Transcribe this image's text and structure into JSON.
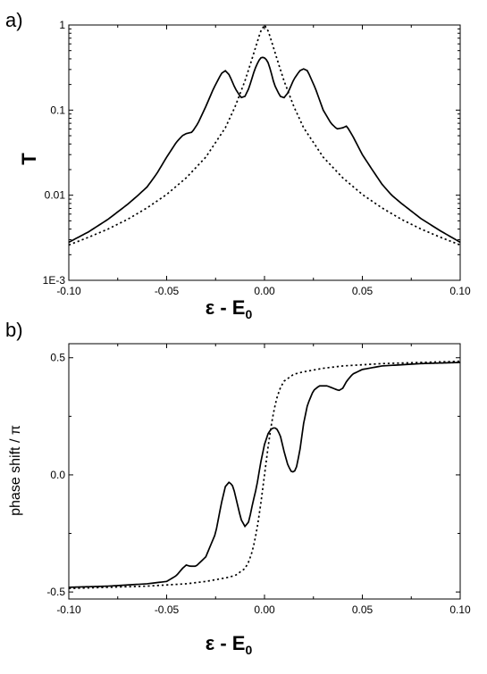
{
  "chart_data": [
    {
      "type": "line",
      "panel_label": "a)",
      "xlabel": "ε - E",
      "xlabel_sub": "0",
      "ylabel": "T",
      "xlim": [
        -0.1,
        0.1
      ],
      "ylim": [
        0.001,
        1
      ],
      "y_scale": "log",
      "grid": false,
      "x_ticks": [
        -0.1,
        -0.05,
        0.0,
        0.05,
        0.1
      ],
      "x_tick_labels": [
        "-0.10",
        "-0.05",
        "0.00",
        "0.05",
        "0.10"
      ],
      "y_ticks": [
        0.001,
        0.01,
        0.1,
        1
      ],
      "y_tick_labels": [
        "1E-3",
        "0.01",
        "0.1",
        "1"
      ],
      "series": [
        {
          "style": "solid",
          "x": [
            -0.1,
            -0.09,
            -0.08,
            -0.07,
            -0.065,
            -0.06,
            -0.055,
            -0.05,
            -0.045,
            -0.042,
            -0.04,
            -0.037,
            -0.034,
            -0.03,
            -0.026,
            -0.022,
            -0.02,
            -0.018,
            -0.015,
            -0.012,
            -0.01,
            -0.008,
            -0.005,
            -0.003,
            -0.0015,
            0.0,
            0.0015,
            0.003,
            0.005,
            0.008,
            0.01,
            0.012,
            0.015,
            0.018,
            0.02,
            0.022,
            0.026,
            0.03,
            0.034,
            0.037,
            0.04,
            0.042,
            0.045,
            0.05,
            0.055,
            0.06,
            0.065,
            0.07,
            0.08,
            0.09,
            0.1
          ],
          "y": [
            0.0028,
            0.0037,
            0.0052,
            0.0078,
            0.0098,
            0.0125,
            0.018,
            0.028,
            0.042,
            0.05,
            0.053,
            0.055,
            0.07,
            0.11,
            0.18,
            0.27,
            0.29,
            0.26,
            0.18,
            0.14,
            0.145,
            0.18,
            0.3,
            0.38,
            0.42,
            0.41,
            0.38,
            0.3,
            0.2,
            0.145,
            0.14,
            0.16,
            0.23,
            0.29,
            0.305,
            0.29,
            0.18,
            0.1,
            0.07,
            0.06,
            0.062,
            0.065,
            0.05,
            0.03,
            0.02,
            0.0135,
            0.01,
            0.008,
            0.0053,
            0.0038,
            0.0028
          ]
        },
        {
          "style": "dotted",
          "x": [
            -0.1,
            -0.09,
            -0.08,
            -0.07,
            -0.06,
            -0.05,
            -0.04,
            -0.03,
            -0.02,
            -0.015,
            -0.01,
            -0.007,
            -0.004,
            -0.002,
            0.0,
            0.002,
            0.004,
            0.007,
            0.01,
            0.015,
            0.02,
            0.03,
            0.04,
            0.05,
            0.06,
            0.07,
            0.08,
            0.09,
            0.1
          ],
          "y": [
            0.0026,
            0.0032,
            0.004,
            0.0052,
            0.0071,
            0.0102,
            0.016,
            0.028,
            0.062,
            0.11,
            0.22,
            0.36,
            0.6,
            0.84,
            1.0,
            0.84,
            0.6,
            0.36,
            0.22,
            0.11,
            0.062,
            0.028,
            0.016,
            0.0102,
            0.0071,
            0.0052,
            0.004,
            0.0032,
            0.0026
          ]
        }
      ]
    },
    {
      "type": "line",
      "panel_label": "b)",
      "xlabel": "ε - E",
      "xlabel_sub": "0",
      "ylabel": "phase shift / π",
      "xlim": [
        -0.1,
        0.1
      ],
      "ylim": [
        -0.53,
        0.56
      ],
      "y_scale": "linear",
      "grid": false,
      "x_ticks": [
        -0.1,
        -0.05,
        0.0,
        0.05,
        0.1
      ],
      "x_tick_labels": [
        "-0.10",
        "-0.05",
        "0.00",
        "0.05",
        "0.10"
      ],
      "y_ticks": [
        -0.5,
        0.0,
        0.5
      ],
      "y_tick_labels": [
        "-0.5",
        "0.0",
        "0.5"
      ],
      "series": [
        {
          "style": "solid",
          "x": [
            -0.1,
            -0.08,
            -0.06,
            -0.05,
            -0.045,
            -0.042,
            -0.04,
            -0.038,
            -0.035,
            -0.03,
            -0.025,
            -0.022,
            -0.02,
            -0.018,
            -0.016,
            -0.014,
            -0.012,
            -0.01,
            -0.008,
            -0.006,
            -0.004,
            -0.002,
            0.0,
            0.002,
            0.004,
            0.006,
            0.008,
            0.01,
            0.012,
            0.014,
            0.016,
            0.018,
            0.02,
            0.022,
            0.025,
            0.028,
            0.032,
            0.035,
            0.038,
            0.04,
            0.042,
            0.045,
            0.05,
            0.06,
            0.08,
            0.1
          ],
          "y": [
            -0.48,
            -0.475,
            -0.465,
            -0.455,
            -0.43,
            -0.4,
            -0.385,
            -0.39,
            -0.39,
            -0.35,
            -0.25,
            -0.12,
            -0.05,
            -0.03,
            -0.05,
            -0.12,
            -0.19,
            -0.22,
            -0.2,
            -0.12,
            -0.05,
            0.05,
            0.13,
            0.18,
            0.2,
            0.2,
            0.17,
            0.1,
            0.04,
            0.01,
            0.02,
            0.1,
            0.22,
            0.3,
            0.36,
            0.38,
            0.38,
            0.37,
            0.36,
            0.37,
            0.4,
            0.43,
            0.45,
            0.465,
            0.475,
            0.48
          ]
        },
        {
          "style": "dotted",
          "x": [
            -0.1,
            -0.08,
            -0.06,
            -0.04,
            -0.03,
            -0.02,
            -0.015,
            -0.01,
            -0.008,
            -0.006,
            -0.004,
            -0.002,
            0.0,
            0.002,
            0.004,
            0.006,
            0.008,
            0.01,
            0.015,
            0.02,
            0.03,
            0.04,
            0.06,
            0.08,
            0.1
          ],
          "y": [
            -0.485,
            -0.48,
            -0.475,
            -0.465,
            -0.455,
            -0.44,
            -0.43,
            -0.4,
            -0.37,
            -0.32,
            -0.24,
            -0.13,
            0.0,
            0.13,
            0.24,
            0.32,
            0.37,
            0.4,
            0.43,
            0.44,
            0.455,
            0.465,
            0.475,
            0.48,
            0.485
          ]
        }
      ]
    }
  ]
}
